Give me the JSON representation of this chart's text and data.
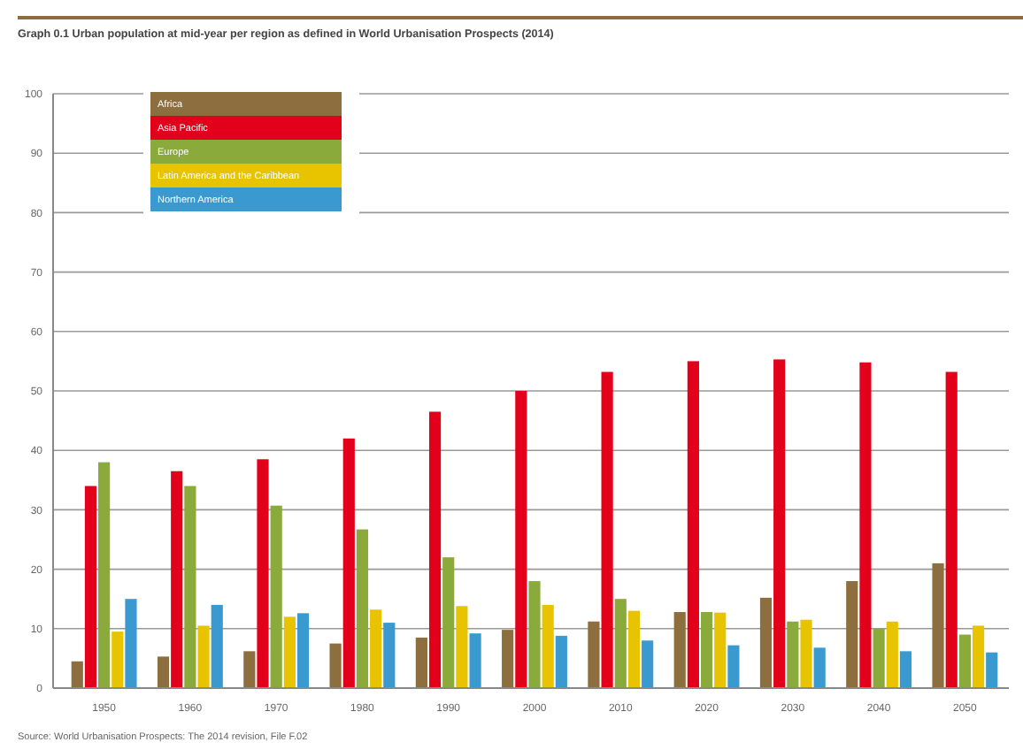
{
  "chart_data": {
    "type": "bar",
    "title": "Graph 0.1 Urban population at mid-year per region as defined in World Urbanisation Prospects (2014)",
    "categories": [
      "1950",
      "1960",
      "1970",
      "1980",
      "1990",
      "2000",
      "2010",
      "2020",
      "2030",
      "2040",
      "2050"
    ],
    "series": [
      {
        "name": "Africa",
        "color": "#8c6e3f",
        "values": [
          4.5,
          5.3,
          6.2,
          7.5,
          8.5,
          9.8,
          11.2,
          12.8,
          15.2,
          18,
          21
        ]
      },
      {
        "name": "Asia Pacific",
        "color": "#e2001a",
        "values": [
          34,
          36.5,
          38.5,
          42,
          46.5,
          50,
          53.2,
          55,
          55.3,
          54.8,
          53.2
        ]
      },
      {
        "name": "Europe",
        "color": "#8aaa3c",
        "values": [
          38,
          34,
          30.7,
          26.7,
          22,
          18,
          15,
          12.8,
          11.2,
          10,
          9
        ]
      },
      {
        "name": "Latin America and the Caribbean",
        "color": "#e8c400",
        "values": [
          9.5,
          10.5,
          12,
          13.2,
          13.8,
          14,
          13,
          12.7,
          11.5,
          11.2,
          10.5
        ]
      },
      {
        "name": "Northern America",
        "color": "#3a9ad0",
        "values": [
          15,
          14,
          12.6,
          11,
          9.2,
          8.8,
          8,
          7.2,
          6.8,
          6.2,
          6
        ]
      }
    ],
    "ylim": [
      0,
      100
    ],
    "yticks": [
      0,
      10,
      20,
      30,
      40,
      50,
      60,
      70,
      80,
      90,
      100
    ],
    "grid": "y",
    "legend": "top left",
    "annotations": [
      "Source: World Urbanisation Prospects: The 2014 revision, File F.02"
    ]
  }
}
